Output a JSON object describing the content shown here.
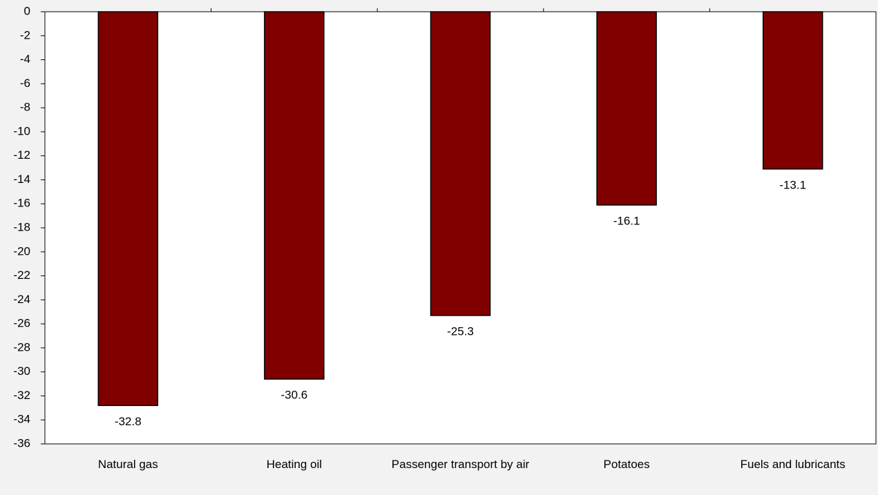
{
  "chart_data": {
    "type": "bar",
    "categories": [
      "Natural gas",
      "Heating oil",
      "Passenger transport by air",
      "Potatoes",
      "Fuels and lubricants"
    ],
    "values": [
      -32.8,
      -30.6,
      -25.3,
      -16.1,
      -13.1
    ],
    "color": "#800000",
    "ylim": [
      -36,
      0
    ],
    "yticks": [
      0,
      -2,
      -4,
      -6,
      -8,
      -10,
      -12,
      -14,
      -16,
      -18,
      -20,
      -22,
      -24,
      -26,
      -28,
      -30,
      -32,
      -34,
      -36
    ]
  }
}
